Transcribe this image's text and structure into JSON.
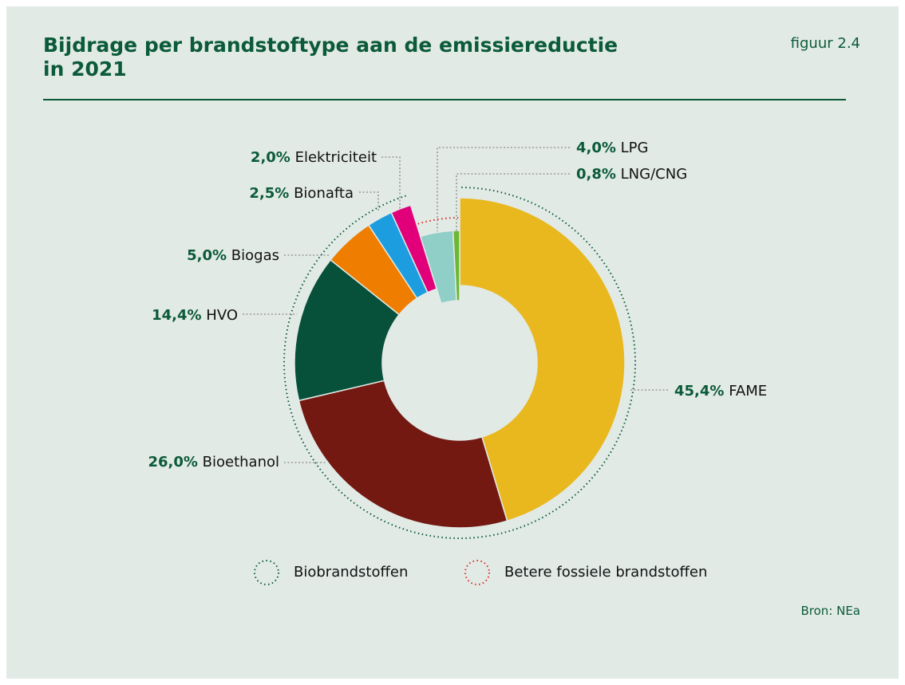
{
  "chart_data": {
    "type": "donut",
    "title": "Bijdrage per brandstoftype aan de emissiereductie in 2021",
    "figure_label": "figuur 2.4",
    "source": "Bron: NEa",
    "categories": [
      "FAME",
      "Bioethanol",
      "HVO",
      "Biogas",
      "Bionafta",
      "Elektriciteit",
      "LPG",
      "LNG/CNG"
    ],
    "values": [
      45.4,
      26.0,
      14.4,
      5.0,
      2.5,
      2.0,
      4.0,
      0.8
    ],
    "value_labels": [
      "45,4%",
      "26,0%",
      "14,4%",
      "5,0%",
      "2,5%",
      "2,0%",
      "4,0%",
      "0,8%"
    ],
    "colors": [
      "#e9b81f",
      "#731912",
      "#07503a",
      "#ee7d00",
      "#1b9de0",
      "#e2007a",
      "#8fcfc7",
      "#6cb734"
    ],
    "groups": [
      {
        "name": "Biobrandstoffen",
        "color": "#0b5a3a",
        "slices": [
          0,
          1,
          2,
          3,
          4,
          5
        ]
      },
      {
        "name": "Betere fossiele brandstoffen",
        "color": "#e0281e",
        "slices": [
          6,
          7
        ]
      }
    ]
  }
}
